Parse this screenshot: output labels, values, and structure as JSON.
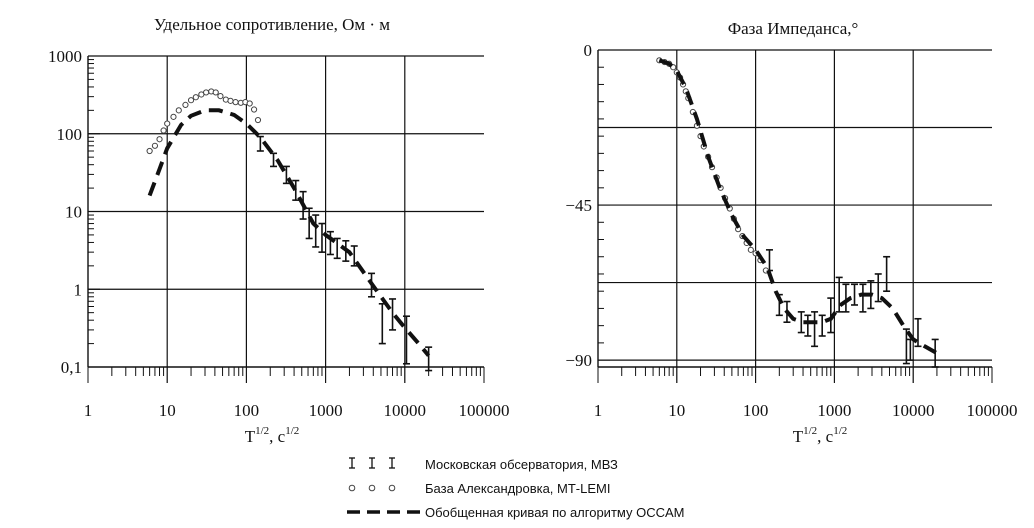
{
  "chart_data": [
    {
      "type": "scatter",
      "title": "Удельное сопротивление, Ом · м",
      "xlabel": "T",
      "xlabel_sup1": "1/2",
      "xlabel_mid": ", с",
      "xlabel_sup2": "1/2",
      "x_scale": "log",
      "y_scale": "log",
      "xlim": [
        1,
        100000
      ],
      "ylim": [
        0.1,
        1000
      ],
      "x_ticks": [
        1,
        10,
        100,
        1000,
        10000,
        100000
      ],
      "x_tick_labels": [
        "1",
        "10",
        "100",
        "1000",
        "10000",
        "100000"
      ],
      "y_ticks": [
        0.1,
        1,
        10,
        100,
        1000
      ],
      "y_tick_labels": [
        "0,1",
        "1",
        "10",
        "100",
        "1000"
      ],
      "grid": true,
      "series": [
        {
          "name": "Московская обсерватория, МВЗ",
          "marker": "errorbar",
          "points": [
            {
              "x": 150,
              "y": 75,
              "lo": 60,
              "hi": 92
            },
            {
              "x": 220,
              "y": 47,
              "lo": 38,
              "hi": 56
            },
            {
              "x": 320,
              "y": 30,
              "lo": 23,
              "hi": 38
            },
            {
              "x": 420,
              "y": 19,
              "lo": 14,
              "hi": 25
            },
            {
              "x": 520,
              "y": 12,
              "lo": 8,
              "hi": 18
            },
            {
              "x": 620,
              "y": 7,
              "lo": 4.5,
              "hi": 11
            },
            {
              "x": 750,
              "y": 6,
              "lo": 3.5,
              "hi": 9
            },
            {
              "x": 900,
              "y": 5,
              "lo": 3,
              "hi": 7
            },
            {
              "x": 1150,
              "y": 4,
              "lo": 2.8,
              "hi": 5.5
            },
            {
              "x": 1400,
              "y": 3.5,
              "lo": 2.5,
              "hi": 4.5
            },
            {
              "x": 1800,
              "y": 3.2,
              "lo": 2.3,
              "hi": 4.2
            },
            {
              "x": 2300,
              "y": 2.8,
              "lo": 2,
              "hi": 3.6
            },
            {
              "x": 3800,
              "y": 1.2,
              "lo": 0.8,
              "hi": 1.6
            },
            {
              "x": 5200,
              "y": 0.4,
              "lo": 0.2,
              "hi": 0.65
            },
            {
              "x": 7000,
              "y": 0.5,
              "lo": 0.3,
              "hi": 0.75
            },
            {
              "x": 10500,
              "y": 0.25,
              "lo": 0.11,
              "hi": 0.45
            },
            {
              "x": 20000,
              "y": 0.12,
              "lo": 0.09,
              "hi": 0.18
            }
          ]
        },
        {
          "name": "База Александровка, МТ-LEMI",
          "marker": "circle",
          "points": [
            [
              6,
              60
            ],
            [
              7,
              70
            ],
            [
              8,
              85
            ],
            [
              9,
              110
            ],
            [
              10,
              135
            ],
            [
              12,
              165
            ],
            [
              14,
              200
            ],
            [
              17,
              235
            ],
            [
              20,
              270
            ],
            [
              23,
              295
            ],
            [
              27,
              320
            ],
            [
              31,
              340
            ],
            [
              36,
              350
            ],
            [
              41,
              340
            ],
            [
              47,
              305
            ],
            [
              55,
              275
            ],
            [
              63,
              265
            ],
            [
              73,
              255
            ],
            [
              85,
              250
            ],
            [
              97,
              255
            ],
            [
              110,
              245
            ],
            [
              125,
              205
            ],
            [
              140,
              150
            ]
          ]
        },
        {
          "name": "Обобщенная кривая по алгоритму OCCAM",
          "marker": "dashed-line",
          "points": [
            [
              6,
              16
            ],
            [
              8,
              35
            ],
            [
              10,
              65
            ],
            [
              15,
              130
            ],
            [
              20,
              170
            ],
            [
              30,
              200
            ],
            [
              45,
              200
            ],
            [
              70,
              175
            ],
            [
              100,
              135
            ],
            [
              150,
              90
            ],
            [
              250,
              45
            ],
            [
              400,
              20
            ],
            [
              700,
              7
            ],
            [
              1000,
              5
            ],
            [
              2000,
              3
            ],
            [
              4000,
              1.1
            ],
            [
              7000,
              0.5
            ],
            [
              10000,
              0.32
            ],
            [
              15000,
              0.2
            ],
            [
              20000,
              0.14
            ]
          ]
        }
      ]
    },
    {
      "type": "scatter",
      "title": "Фаза Импеданса,°",
      "xlabel": "T",
      "xlabel_sup1": "1/2",
      "xlabel_mid": ", с",
      "xlabel_sup2": "1/2",
      "x_scale": "log",
      "y_scale": "linear",
      "xlim": [
        1,
        100000
      ],
      "ylim": [
        -92,
        0
      ],
      "x_ticks": [
        1,
        10,
        100,
        1000,
        10000,
        100000
      ],
      "x_tick_labels": [
        "1",
        "10",
        "100",
        "1000",
        "10000",
        "100000"
      ],
      "y_ticks": [
        0,
        -45,
        -90
      ],
      "y_tick_labels": [
        "0",
        "−45",
        "−90"
      ],
      "grid": true,
      "series": [
        {
          "name": "Московская обсерватория, МВЗ",
          "marker": "errorbar",
          "points": [
            {
              "x": 150,
              "y": -61,
              "lo": -64,
              "hi": -58
            },
            {
              "x": 200,
              "y": -74,
              "lo": -77,
              "hi": -71
            },
            {
              "x": 250,
              "y": -76,
              "lo": -79,
              "hi": -73
            },
            {
              "x": 380,
              "y": -79,
              "lo": -82,
              "hi": -76
            },
            {
              "x": 460,
              "y": -80,
              "lo": -83,
              "hi": -77
            },
            {
              "x": 560,
              "y": -81,
              "lo": -86,
              "hi": -76
            },
            {
              "x": 700,
              "y": -80,
              "lo": -83,
              "hi": -77
            },
            {
              "x": 900,
              "y": -77,
              "lo": -82,
              "hi": -72
            },
            {
              "x": 1150,
              "y": -71,
              "lo": -76,
              "hi": -66
            },
            {
              "x": 1400,
              "y": -72,
              "lo": -76,
              "hi": -68
            },
            {
              "x": 1800,
              "y": -71,
              "lo": -74,
              "hi": -68
            },
            {
              "x": 2300,
              "y": -72,
              "lo": -76,
              "hi": -68
            },
            {
              "x": 2900,
              "y": -71,
              "lo": -75,
              "hi": -67
            },
            {
              "x": 3600,
              "y": -69,
              "lo": -73,
              "hi": -65
            },
            {
              "x": 4600,
              "y": -65,
              "lo": -70,
              "hi": -60
            },
            {
              "x": 8200,
              "y": -86,
              "lo": -91,
              "hi": -81
            },
            {
              "x": 9200,
              "y": -87,
              "lo": -90,
              "hi": -84
            },
            {
              "x": 11500,
              "y": -82,
              "lo": -86,
              "hi": -78
            },
            {
              "x": 19000,
              "y": -88,
              "lo": -92,
              "hi": -84
            }
          ]
        },
        {
          "name": "База Александровка, МТ-LEMI",
          "marker": "circle",
          "points": [
            [
              6,
              -3
            ],
            [
              7,
              -3.5
            ],
            [
              8,
              -4
            ],
            [
              9,
              -5
            ],
            [
              10,
              -6.5
            ],
            [
              11,
              -8
            ],
            [
              12,
              -10
            ],
            [
              13,
              -12
            ],
            [
              14,
              -14
            ],
            [
              16,
              -18
            ],
            [
              18,
              -22
            ],
            [
              20,
              -25
            ],
            [
              22,
              -28
            ],
            [
              25,
              -31
            ],
            [
              28,
              -34
            ],
            [
              32,
              -37
            ],
            [
              36,
              -40
            ],
            [
              41,
              -43
            ],
            [
              47,
              -46
            ],
            [
              53,
              -49
            ],
            [
              60,
              -52
            ],
            [
              68,
              -54
            ],
            [
              77,
              -56
            ],
            [
              87,
              -58
            ],
            [
              100,
              -59
            ],
            [
              115,
              -61
            ],
            [
              135,
              -64
            ]
          ]
        },
        {
          "name": "Обобщенная кривая по алгоритму OCCAM",
          "marker": "dashed-line",
          "points": [
            [
              6,
              -3
            ],
            [
              8,
              -4
            ],
            [
              10,
              -6
            ],
            [
              13,
              -11
            ],
            [
              18,
              -20
            ],
            [
              25,
              -31
            ],
            [
              35,
              -40
            ],
            [
              50,
              -48
            ],
            [
              70,
              -54
            ],
            [
              100,
              -58
            ],
            [
              140,
              -63
            ],
            [
              180,
              -70
            ],
            [
              230,
              -75
            ],
            [
              300,
              -78
            ],
            [
              400,
              -79
            ],
            [
              550,
              -79
            ],
            [
              700,
              -79
            ],
            [
              900,
              -78
            ],
            [
              1200,
              -74
            ],
            [
              1600,
              -72
            ],
            [
              2200,
              -71
            ],
            [
              3000,
              -71
            ],
            [
              4000,
              -72
            ],
            [
              5500,
              -75
            ],
            [
              7500,
              -80
            ],
            [
              10000,
              -84
            ],
            [
              14000,
              -86
            ],
            [
              20000,
              -88
            ]
          ]
        }
      ]
    }
  ],
  "legend": {
    "items": [
      {
        "marker": "errorbar",
        "label": "Московская обсерватория, МВЗ"
      },
      {
        "marker": "circle",
        "label": "База Александровка, МТ-LEMI"
      },
      {
        "marker": "dashed-line",
        "label": "Обобщенная кривая по алгоритму OCCAM"
      }
    ]
  }
}
